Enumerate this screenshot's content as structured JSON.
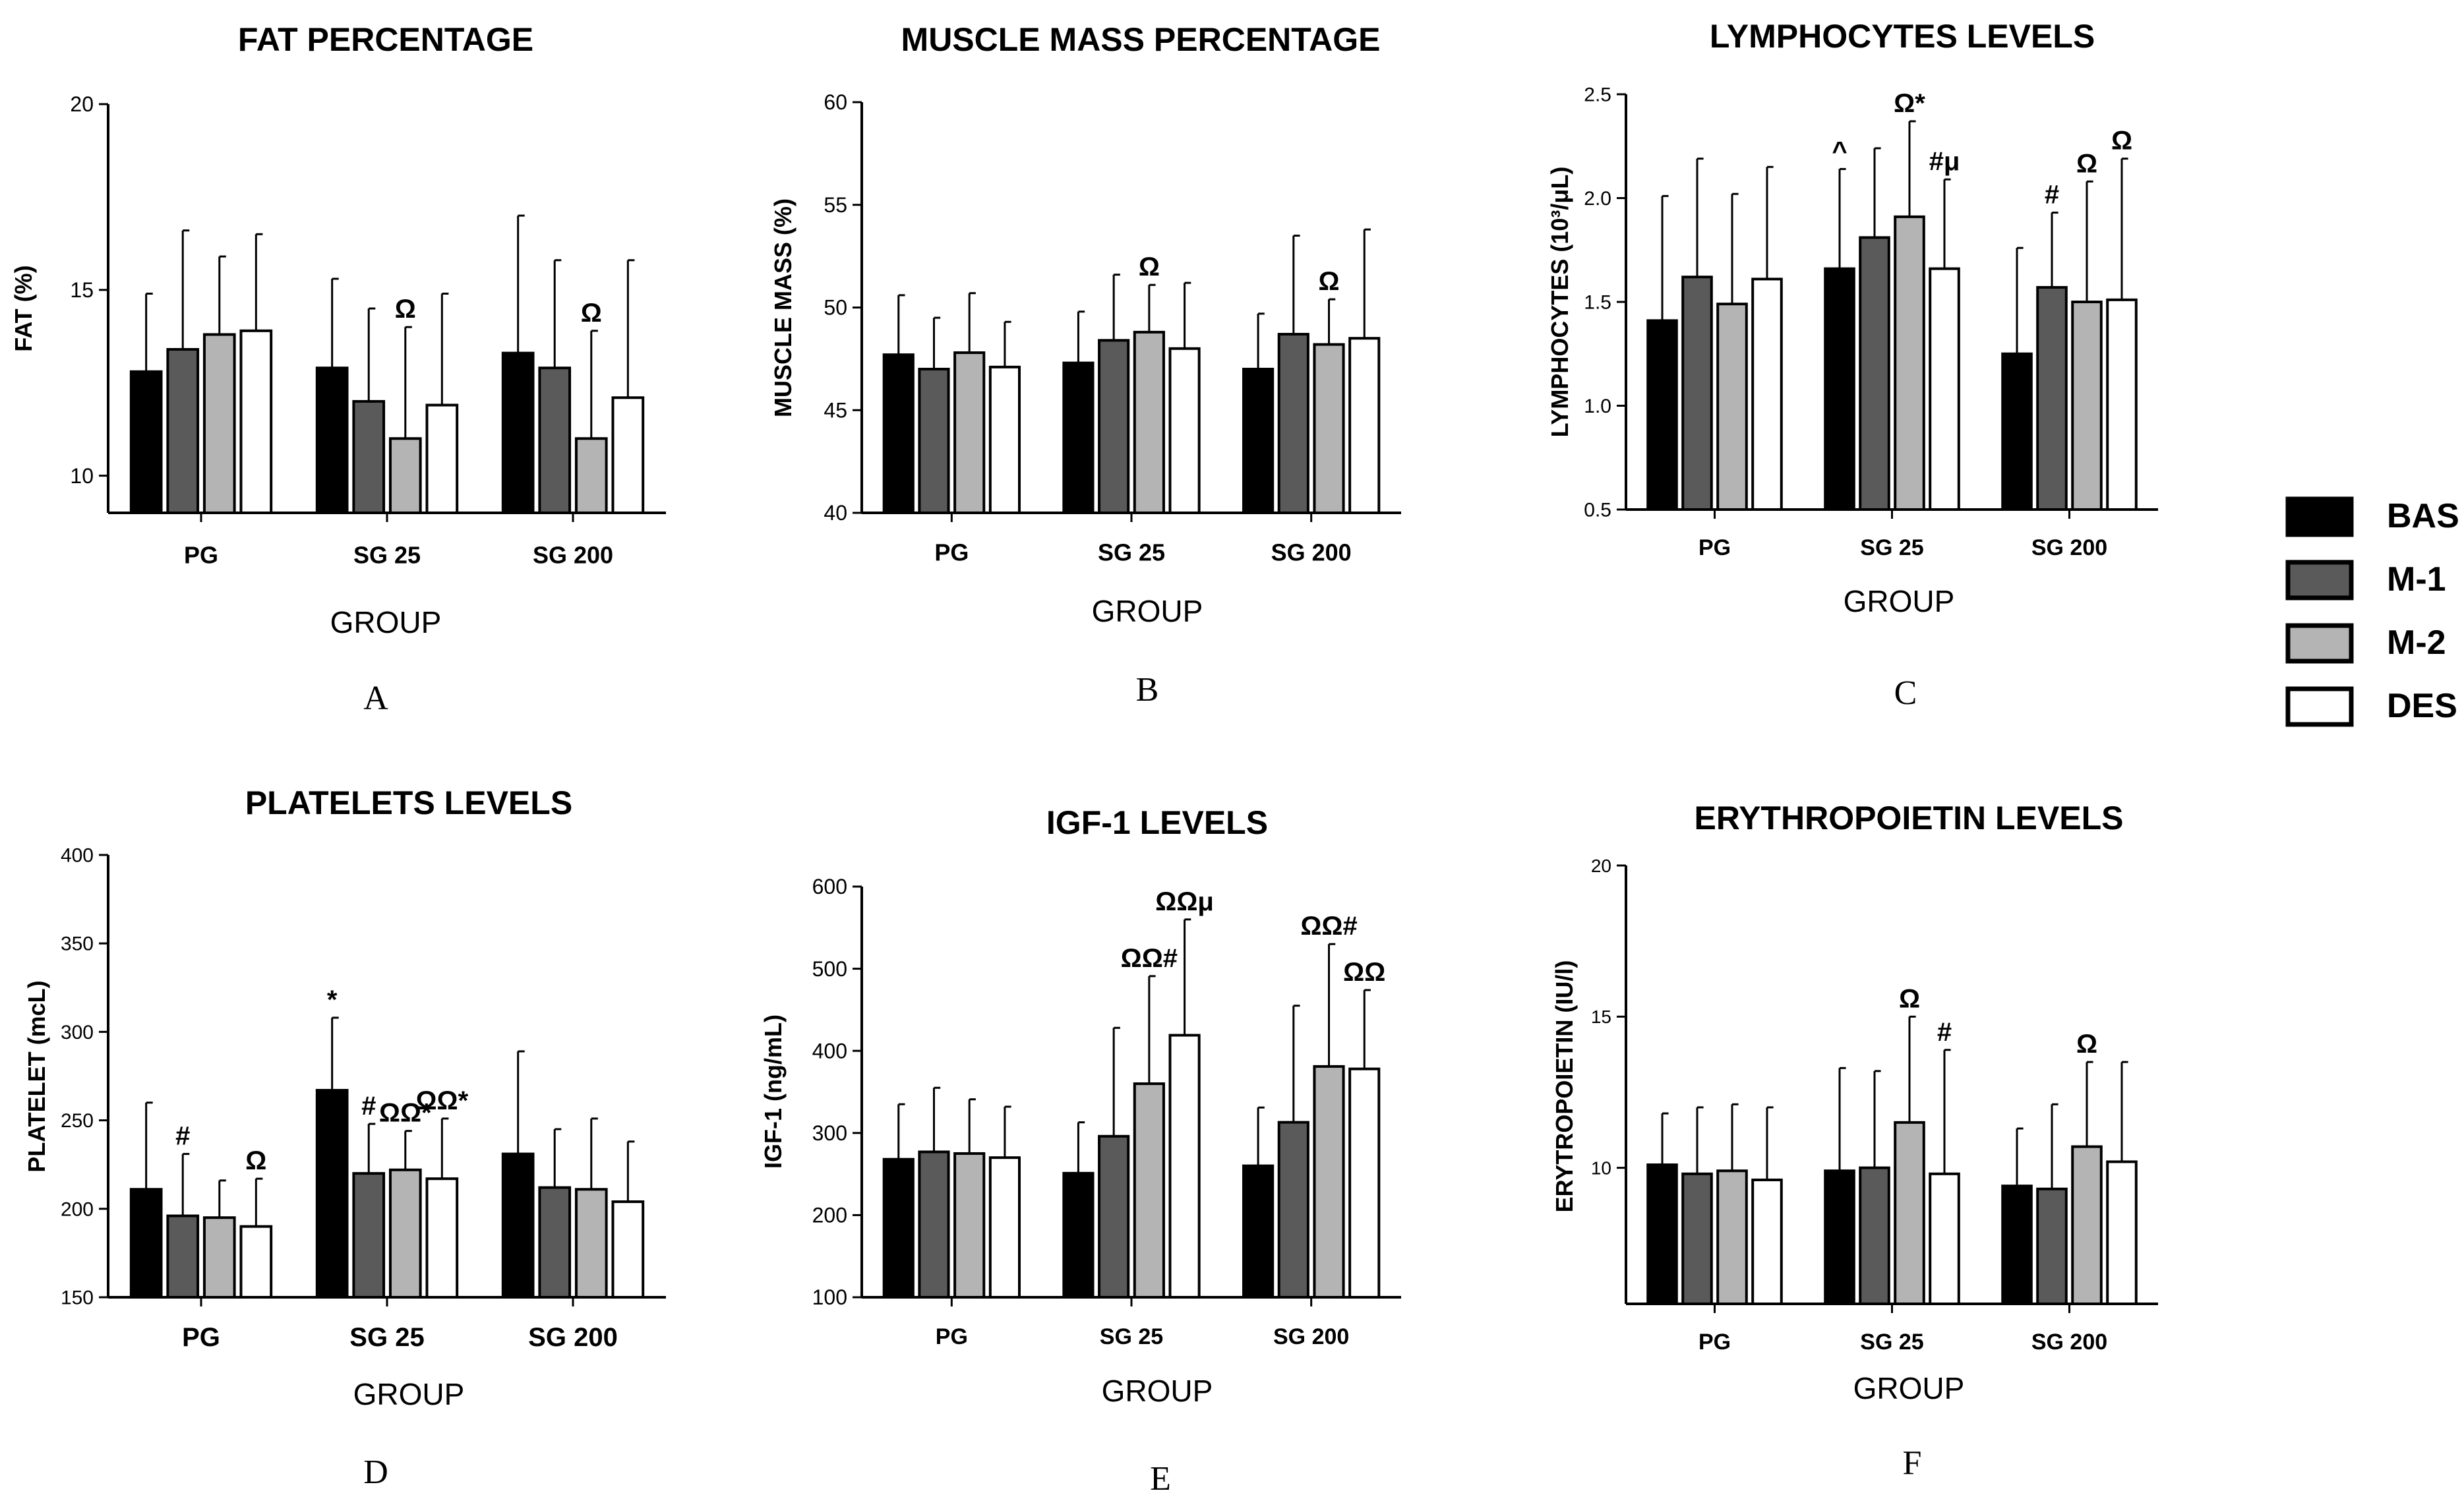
{
  "legend": {
    "entries": [
      {
        "label": "BAS",
        "color": "#000000"
      },
      {
        "label": "M-1",
        "color": "#5a5a5a"
      },
      {
        "label": "M-2",
        "color": "#b4b4b4"
      },
      {
        "label": "DES",
        "color": "#ffffff"
      }
    ]
  },
  "chart_data": [
    {
      "type": "bar",
      "letter": "A",
      "title": "FAT  PERCENTAGE",
      "xlabel": "GROUP",
      "ylabel": "FAT (%)",
      "ylim": [
        9,
        20
      ],
      "yticks": [
        10,
        15,
        20
      ],
      "ytick_labels": [
        "10",
        "15",
        "20"
      ],
      "categories": [
        "PG",
        "SG 25",
        "SG 200"
      ],
      "series": [
        {
          "name": "BAS",
          "values": [
            12.8,
            12.9,
            13.3
          ],
          "errors": [
            2.1,
            2.4,
            3.7
          ]
        },
        {
          "name": "M-1",
          "values": [
            13.4,
            12.0,
            12.9
          ],
          "errors": [
            3.2,
            2.5,
            2.9
          ]
        },
        {
          "name": "M-2",
          "values": [
            13.8,
            11.0,
            11.0
          ],
          "errors": [
            2.1,
            3.0,
            2.9
          ]
        },
        {
          "name": "DES",
          "values": [
            13.9,
            11.9,
            12.1
          ],
          "errors": [
            2.6,
            3.0,
            3.7
          ]
        }
      ],
      "annotations": [
        {
          "category": 1,
          "series": 2,
          "text": "Ω"
        },
        {
          "category": 2,
          "series": 2,
          "text": "Ω"
        }
      ]
    },
    {
      "type": "bar",
      "letter": "B",
      "title": "MUSCLE MASS PERCENTAGE",
      "xlabel": "GROUP",
      "ylabel": "MUSCLE MASS (%)",
      "ylim": [
        40,
        60
      ],
      "yticks": [
        40,
        45,
        50,
        55,
        60
      ],
      "ytick_labels": [
        "40",
        "45",
        "50",
        "55",
        "60"
      ],
      "categories": [
        "PG",
        "SG 25",
        "SG 200"
      ],
      "series": [
        {
          "name": "BAS",
          "values": [
            47.7,
            47.3,
            47.0
          ],
          "errors": [
            2.9,
            2.5,
            2.7
          ]
        },
        {
          "name": "M-1",
          "values": [
            47.0,
            48.4,
            48.7
          ],
          "errors": [
            2.5,
            3.2,
            4.8
          ]
        },
        {
          "name": "M-2",
          "values": [
            47.8,
            48.8,
            48.2
          ],
          "errors": [
            2.9,
            2.3,
            2.2
          ]
        },
        {
          "name": "DES",
          "values": [
            47.1,
            48.0,
            48.5
          ],
          "errors": [
            2.2,
            3.2,
            5.3
          ]
        }
      ],
      "annotations": [
        {
          "category": 1,
          "series": 2,
          "text": "Ω"
        },
        {
          "category": 2,
          "series": 2,
          "text": "Ω"
        }
      ]
    },
    {
      "type": "bar",
      "letter": "C",
      "title": "LYMPHOCYTES LEVELS",
      "xlabel": "GROUP",
      "ylabel": "LYMPHOCYTES (10³/μL)",
      "ylim": [
        0.5,
        2.5
      ],
      "yticks": [
        0.5,
        1.0,
        1.5,
        2.0,
        2.5
      ],
      "ytick_labels": [
        "0.5",
        "1.0",
        "1.5",
        "2.0",
        "2.5"
      ],
      "categories": [
        "PG",
        "SG 25",
        "SG 200"
      ],
      "series": [
        {
          "name": "BAS",
          "values": [
            1.41,
            1.66,
            1.25
          ],
          "errors": [
            0.6,
            0.48,
            0.51
          ]
        },
        {
          "name": "M-1",
          "values": [
            1.62,
            1.81,
            1.57
          ],
          "errors": [
            0.57,
            0.43,
            0.36
          ]
        },
        {
          "name": "M-2",
          "values": [
            1.49,
            1.91,
            1.5
          ],
          "errors": [
            0.53,
            0.46,
            0.58
          ]
        },
        {
          "name": "DES",
          "values": [
            1.61,
            1.66,
            1.51
          ],
          "errors": [
            0.54,
            0.43,
            0.68
          ]
        }
      ],
      "annotations": [
        {
          "category": 1,
          "series": 0,
          "text": "^"
        },
        {
          "category": 1,
          "series": 2,
          "text": "Ω*"
        },
        {
          "category": 1,
          "series": 3,
          "text": "#μ"
        },
        {
          "category": 2,
          "series": 1,
          "text": "#"
        },
        {
          "category": 2,
          "series": 2,
          "text": "Ω"
        },
        {
          "category": 2,
          "series": 3,
          "text": "Ω"
        }
      ]
    },
    {
      "type": "bar",
      "letter": "D",
      "title": "PLATELETS LEVELS",
      "xlabel": "GROUP",
      "ylabel": "PLATELET (mcL)",
      "ylim": [
        150,
        400
      ],
      "yticks": [
        150,
        200,
        250,
        300,
        350,
        400
      ],
      "ytick_labels": [
        "150",
        "200",
        "250",
        "300",
        "350",
        "400"
      ],
      "categories": [
        "PG",
        "SG 25",
        "SG 200"
      ],
      "series": [
        {
          "name": "BAS",
          "values": [
            211,
            267,
            231
          ],
          "errors": [
            49,
            41,
            58
          ]
        },
        {
          "name": "M-1",
          "values": [
            196,
            220,
            212
          ],
          "errors": [
            35,
            28,
            33
          ]
        },
        {
          "name": "M-2",
          "values": [
            195,
            222,
            211
          ],
          "errors": [
            21,
            22,
            40
          ]
        },
        {
          "name": "DES",
          "values": [
            190,
            217,
            204
          ],
          "errors": [
            27,
            34,
            34
          ]
        }
      ],
      "annotations": [
        {
          "category": 0,
          "series": 1,
          "text": "#"
        },
        {
          "category": 0,
          "series": 3,
          "text": "Ω"
        },
        {
          "category": 1,
          "series": 0,
          "text": "*"
        },
        {
          "category": 1,
          "series": 1,
          "text": "#"
        },
        {
          "category": 1,
          "series": 2,
          "text": "ΩΩ*"
        },
        {
          "category": 1,
          "series": 3,
          "text": "ΩΩ*"
        }
      ]
    },
    {
      "type": "bar",
      "letter": "E",
      "title": "IGF-1 LEVELS",
      "xlabel": "GROUP",
      "ylabel": "IGF-1 (ng/mL)",
      "ylim": [
        100,
        600
      ],
      "yticks": [
        100,
        200,
        300,
        400,
        500,
        600
      ],
      "ytick_labels": [
        "100",
        "200",
        "300",
        "400",
        "500",
        "600"
      ],
      "categories": [
        "PG",
        "SG 25",
        "SG 200"
      ],
      "series": [
        {
          "name": "BAS",
          "values": [
            268,
            251,
            260
          ],
          "errors": [
            67,
            62,
            71
          ]
        },
        {
          "name": "M-1",
          "values": [
            277,
            296,
            313
          ],
          "errors": [
            78,
            132,
            142
          ]
        },
        {
          "name": "M-2",
          "values": [
            275,
            360,
            381
          ],
          "errors": [
            66,
            131,
            149
          ]
        },
        {
          "name": "DES",
          "values": [
            270,
            419,
            378
          ],
          "errors": [
            62,
            141,
            96
          ]
        }
      ],
      "annotations": [
        {
          "category": 1,
          "series": 2,
          "text": "ΩΩ#"
        },
        {
          "category": 1,
          "series": 3,
          "text": "ΩΩμ"
        },
        {
          "category": 2,
          "series": 2,
          "text": "ΩΩ#"
        },
        {
          "category": 2,
          "series": 3,
          "text": "ΩΩ"
        }
      ]
    },
    {
      "type": "bar",
      "letter": "F",
      "title": "ERYTHROPOIETIN LEVELS",
      "xlabel": "GROUP",
      "ylabel": "ERYTROPOIETIN (IU/l)",
      "ylim": [
        5.5,
        20
      ],
      "yticks": [
        10,
        15,
        20
      ],
      "ytick_labels": [
        "10",
        "15",
        "20"
      ],
      "categories": [
        "PG",
        "SG 25",
        "SG 200"
      ],
      "series": [
        {
          "name": "BAS",
          "values": [
            10.1,
            9.9,
            9.4
          ],
          "errors": [
            1.7,
            3.4,
            1.9
          ]
        },
        {
          "name": "M-1",
          "values": [
            9.8,
            10.0,
            9.3
          ],
          "errors": [
            2.2,
            3.2,
            2.8
          ]
        },
        {
          "name": "M-2",
          "values": [
            9.9,
            11.5,
            10.7
          ],
          "errors": [
            2.2,
            3.5,
            2.8
          ]
        },
        {
          "name": "DES",
          "values": [
            9.6,
            9.8,
            10.2
          ],
          "errors": [
            2.4,
            4.1,
            3.3
          ]
        }
      ],
      "annotations": [
        {
          "category": 1,
          "series": 2,
          "text": "Ω"
        },
        {
          "category": 1,
          "series": 3,
          "text": "#"
        },
        {
          "category": 2,
          "series": 2,
          "text": "Ω"
        }
      ]
    }
  ]
}
